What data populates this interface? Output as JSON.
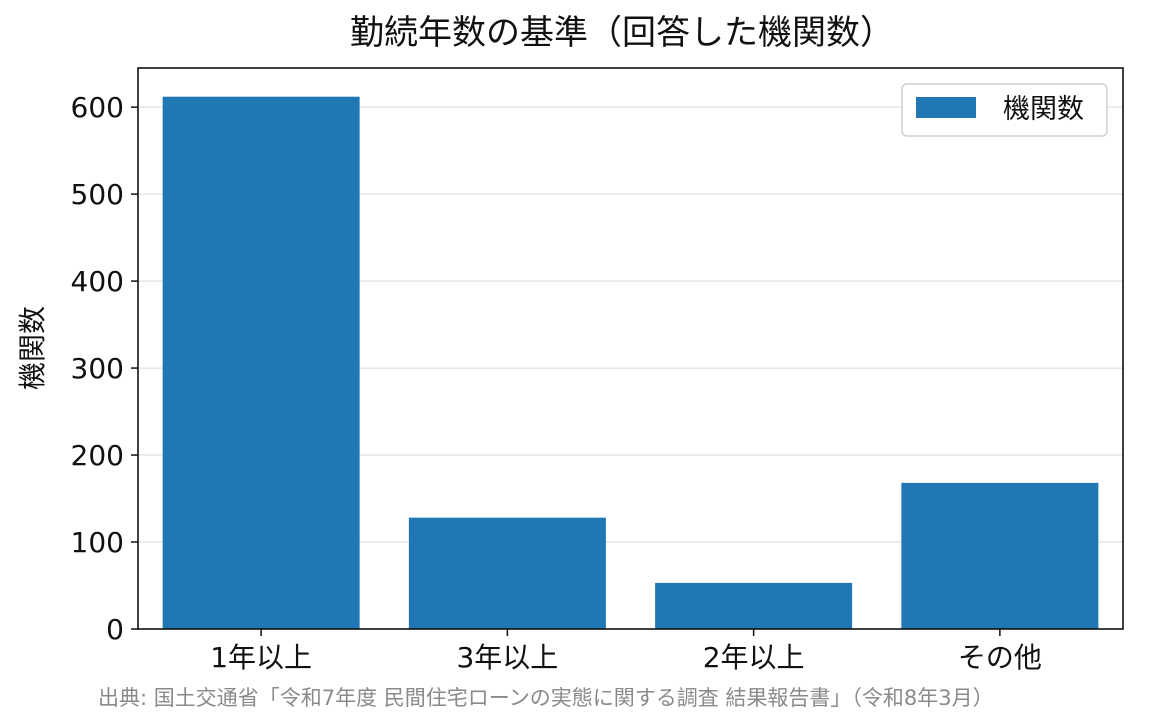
{
  "chart_data": {
    "type": "bar",
    "title": "勤続年数の基準（回答した機関数）",
    "xlabel": "",
    "ylabel": "機関数",
    "categories": [
      "1年以上",
      "3年以上",
      "2年以上",
      "その他"
    ],
    "series": [
      {
        "name": "機関数",
        "values": [
          612,
          128,
          53,
          168
        ]
      }
    ],
    "ylim": [
      0,
      645
    ],
    "yticks": [
      0,
      100,
      200,
      300,
      400,
      500,
      600
    ],
    "grid": "horizontal",
    "legend": "top-right",
    "color": "#2077b4"
  },
  "source": "出典: 国土交通省「令和7年度 民間住宅ローンの実態に関する調査 結果報告書」（令和8年3月）"
}
